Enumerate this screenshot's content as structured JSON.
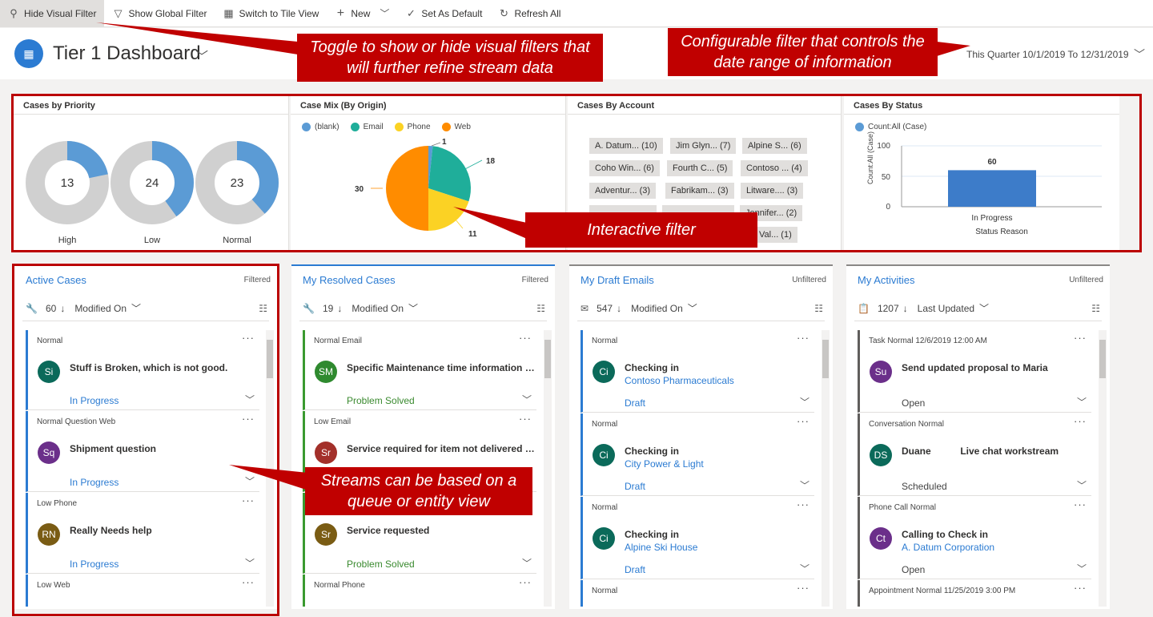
{
  "toolbar": {
    "hide_visual_filter": "Hide Visual Filter",
    "show_global_filter": "Show Global Filter",
    "switch_tile_view": "Switch to Tile View",
    "new": "New",
    "set_default": "Set As Default",
    "refresh_all": "Refresh All"
  },
  "header": {
    "title": "Tier 1 Dashboard",
    "date_range": "This Quarter 10/1/2019 To 12/31/2019"
  },
  "callouts": {
    "visual_filter": "Toggle to show or hide visual filters that will further refine stream data",
    "date_filter": "Configurable filter that controls the date range of information",
    "interactive": "Interactive filter",
    "streams": "Streams can be based on a queue or entity view"
  },
  "charts": {
    "priority": {
      "title": "Cases by Priority",
      "items": [
        {
          "label": "High",
          "value": "13"
        },
        {
          "label": "Low",
          "value": "24"
        },
        {
          "label": "Normal",
          "value": "23"
        }
      ]
    },
    "origin": {
      "title": "Case Mix (By Origin)",
      "legend": [
        "(blank)",
        "Email",
        "Phone",
        "Web"
      ],
      "labels": {
        "blank": "1",
        "email": "18",
        "phone": "11",
        "web": "30"
      }
    },
    "account": {
      "title": "Cases By Account",
      "tags": [
        "A. Datum... (10)",
        "Jim Glyn... (7)",
        "Alpine S... (6)",
        "Coho Win... (6)",
        "Fourth C... (5)",
        "Contoso ... (4)",
        "Adventur... (3)",
        "Fabrikam... (3)",
        "Litware.... (3)",
        "Jennifer... (2)",
        "Val... (1)"
      ]
    },
    "status": {
      "title": "Cases By Status",
      "legend": "Count:All (Case)",
      "ylabel": "Count:All (Case)",
      "yticks": [
        "100",
        "50",
        "0"
      ],
      "bar_value": "60",
      "category": "In Progress",
      "xlabel": "Status Reason"
    }
  },
  "chart_data": [
    {
      "type": "pie",
      "title": "Cases by Priority",
      "categories": [
        "High",
        "Low",
        "Normal"
      ],
      "values": [
        13,
        24,
        23
      ]
    },
    {
      "type": "pie",
      "title": "Case Mix (By Origin)",
      "categories": [
        "(blank)",
        "Email",
        "Phone",
        "Web"
      ],
      "values": [
        1,
        18,
        11,
        30
      ]
    },
    {
      "type": "bar",
      "title": "Cases By Status",
      "categories": [
        "In Progress"
      ],
      "values": [
        60
      ],
      "xlabel": "Status Reason",
      "ylabel": "Count:All (Case)",
      "ylim": [
        0,
        100
      ]
    }
  ],
  "streams": [
    {
      "title": "Active Cases",
      "filter": "Filtered",
      "count": "60",
      "sort": "Modified On",
      "cards": [
        {
          "meta": "Normal",
          "initials": "Si",
          "title": "Stuff is Broken, which is not good.",
          "sub": "",
          "status": "In Progress"
        },
        {
          "meta": "Normal   Question   Web",
          "initials": "Sq",
          "title": "Shipment question",
          "sub": "",
          "status": "In Progress"
        },
        {
          "meta": "Low   Phone",
          "initials": "RN",
          "title": "Really Needs help",
          "sub": "",
          "status": "In Progress"
        },
        {
          "meta": "Low   Web",
          "initials": "",
          "title": "",
          "sub": "",
          "status": ""
        }
      ]
    },
    {
      "title": "My Resolved Cases",
      "filter": "Filtered",
      "count": "19",
      "sort": "Modified On",
      "cards": [
        {
          "meta": "Normal   Email",
          "initials": "SM",
          "title": "Specific Maintenance time information re...",
          "sub": "",
          "status": "Problem Solved"
        },
        {
          "meta": "Low   Email",
          "initials": "Sr",
          "title": "Service required for item not delivered to ...",
          "sub": "",
          "status": ""
        },
        {
          "meta": "",
          "initials": "Sr",
          "title": "Service requested",
          "sub": "",
          "status": "Problem Solved"
        },
        {
          "meta": "Normal   Phone",
          "initials": "",
          "title": "",
          "sub": "",
          "status": ""
        }
      ]
    },
    {
      "title": "My Draft Emails",
      "filter": "Unfiltered",
      "count": "547",
      "sort": "Modified On",
      "cards": [
        {
          "meta": "Normal",
          "initials": "Ci",
          "title": "Checking in",
          "sub": "Contoso Pharmaceuticals",
          "status": "Draft"
        },
        {
          "meta": "Normal",
          "initials": "Ci",
          "title": "Checking in",
          "sub": "City Power & Light",
          "status": "Draft"
        },
        {
          "meta": "Normal",
          "initials": "Ci",
          "title": "Checking in",
          "sub": "Alpine Ski House",
          "status": "Draft"
        },
        {
          "meta": "Normal",
          "initials": "",
          "title": "",
          "sub": "",
          "status": ""
        }
      ]
    },
    {
      "title": "My Activities",
      "filter": "Unfiltered",
      "count": "1207",
      "sort": "Last Updated",
      "cards": [
        {
          "meta": "Task   Normal   12/6/2019 12:00 AM",
          "initials": "Su",
          "title": "Send updated proposal to Maria",
          "sub": "",
          "status": "Open"
        },
        {
          "meta": "Conversation   Normal",
          "initials": "DS",
          "title": "Duane           Live chat workstream",
          "sub": "",
          "status": "Scheduled"
        },
        {
          "meta": "Phone Call   Normal",
          "initials": "Ct",
          "title": "Calling to Check in",
          "sub": "A. Datum Corporation",
          "status": "Open"
        },
        {
          "meta": "Appointment   Normal   11/25/2019 3:00 PM",
          "initials": "",
          "title": "",
          "sub": "",
          "status": ""
        }
      ]
    }
  ],
  "colors": {
    "accent": "#2b7bd2",
    "callout": "#c00000",
    "email": "#1fae9a",
    "phone": "#fbd224",
    "web": "#ff8c00",
    "grey": "#d0d0d0"
  }
}
